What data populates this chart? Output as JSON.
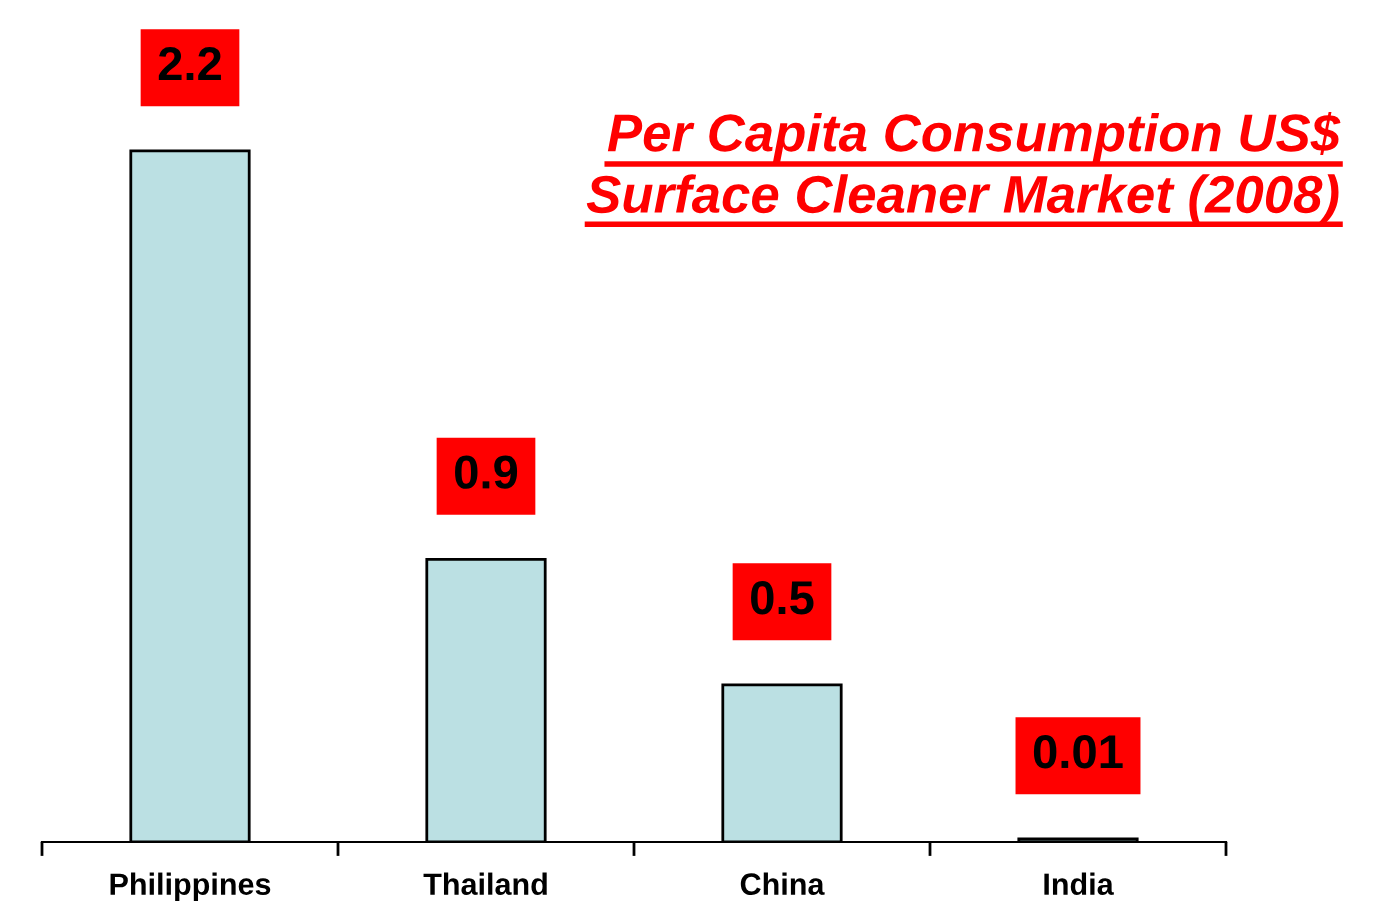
{
  "chart_data": {
    "type": "bar",
    "title": "Per Capita Consumption US$\nSurface Cleaner Market (2008)",
    "categories": [
      "Philippines",
      "Thailand",
      "China",
      "India"
    ],
    "values": [
      2.2,
      0.9,
      0.5,
      0.01
    ],
    "color": "#bbe0e3",
    "data_labels": true
  }
}
